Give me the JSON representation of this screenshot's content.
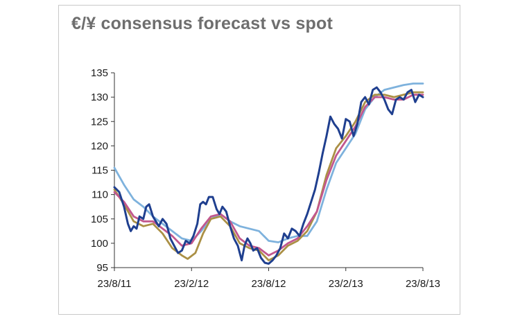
{
  "chart_data": {
    "type": "line",
    "title": "€/¥ consensus forecast vs spot",
    "xlabel": "",
    "ylabel": "",
    "ylim": [
      95,
      135
    ],
    "yticks": [
      95,
      100,
      105,
      110,
      115,
      120,
      125,
      130,
      135
    ],
    "xlim": [
      "2011-08-23",
      "2013-08-23"
    ],
    "xticks": [
      "23/8/11",
      "23/2/12",
      "23/8/12",
      "23/2/13",
      "23/8/13"
    ],
    "grid": false,
    "legend": "none",
    "series": [
      {
        "color": "#1f3f8f",
        "points": [
          [
            0,
            111.5
          ],
          [
            0.25,
            110.5
          ],
          [
            0.5,
            107.5
          ],
          [
            0.7,
            104
          ],
          [
            0.85,
            102.5
          ],
          [
            1,
            103.5
          ],
          [
            1.15,
            103
          ],
          [
            1.3,
            105.5
          ],
          [
            1.5,
            105
          ],
          [
            1.65,
            107.5
          ],
          [
            1.8,
            108
          ],
          [
            2,
            105.5
          ],
          [
            2.15,
            104.5
          ],
          [
            2.3,
            103.5
          ],
          [
            2.5,
            105
          ],
          [
            2.7,
            104
          ],
          [
            2.9,
            101
          ],
          [
            3.1,
            99.5
          ],
          [
            3.3,
            98
          ],
          [
            3.5,
            98.5
          ],
          [
            3.7,
            100.5
          ],
          [
            3.9,
            100
          ],
          [
            4.1,
            101.5
          ],
          [
            4.3,
            104
          ],
          [
            4.45,
            108
          ],
          [
            4.6,
            108.5
          ],
          [
            4.75,
            108
          ],
          [
            4.9,
            109.5
          ],
          [
            5.1,
            109.5
          ],
          [
            5.3,
            107
          ],
          [
            5.45,
            106
          ],
          [
            5.6,
            107.5
          ],
          [
            5.8,
            106.5
          ],
          [
            6,
            103.5
          ],
          [
            6.2,
            101
          ],
          [
            6.4,
            99.5
          ],
          [
            6.6,
            96.5
          ],
          [
            6.75,
            99.5
          ],
          [
            6.9,
            101
          ],
          [
            7.05,
            100
          ],
          [
            7.2,
            98.5
          ],
          [
            7.4,
            99
          ],
          [
            7.6,
            97
          ],
          [
            7.8,
            96
          ],
          [
            8,
            95.8
          ],
          [
            8.2,
            96.5
          ],
          [
            8.4,
            97.5
          ],
          [
            8.6,
            99
          ],
          [
            8.8,
            102
          ],
          [
            9,
            101
          ],
          [
            9.2,
            103
          ],
          [
            9.4,
            102.5
          ],
          [
            9.6,
            101.5
          ],
          [
            9.8,
            104
          ],
          [
            10,
            106
          ],
          [
            10.2,
            108.5
          ],
          [
            10.4,
            111
          ],
          [
            10.6,
            114.5
          ],
          [
            10.8,
            118.5
          ],
          [
            11,
            122
          ],
          [
            11.2,
            126
          ],
          [
            11.4,
            124.5
          ],
          [
            11.6,
            123.5
          ],
          [
            11.8,
            121.5
          ],
          [
            12,
            125.5
          ],
          [
            12.2,
            125
          ],
          [
            12.4,
            122
          ],
          [
            12.6,
            124.5
          ],
          [
            12.8,
            129
          ],
          [
            13,
            130
          ],
          [
            13.2,
            128.5
          ],
          [
            13.4,
            131.5
          ],
          [
            13.6,
            132
          ],
          [
            13.8,
            131
          ],
          [
            14,
            129.5
          ],
          [
            14.2,
            127.5
          ],
          [
            14.4,
            126.5
          ],
          [
            14.6,
            129.5
          ],
          [
            14.8,
            130
          ],
          [
            15,
            129.5
          ],
          [
            15.2,
            131
          ],
          [
            15.4,
            131.5
          ],
          [
            15.6,
            129
          ],
          [
            15.8,
            130.5
          ],
          [
            16,
            130
          ]
        ]
      },
      {
        "color": "#c2578e",
        "points": [
          [
            0,
            110.5
          ],
          [
            0.5,
            108.5
          ],
          [
            1,
            105.5
          ],
          [
            1.5,
            104.5
          ],
          [
            2,
            104.5
          ],
          [
            2.5,
            103
          ],
          [
            3,
            101.5
          ],
          [
            3.5,
            99.5
          ],
          [
            4,
            100
          ],
          [
            4.5,
            103
          ],
          [
            5,
            105.5
          ],
          [
            5.5,
            106
          ],
          [
            6,
            104.5
          ],
          [
            6.5,
            101
          ],
          [
            7,
            99.5
          ],
          [
            7.5,
            99
          ],
          [
            8,
            97.5
          ],
          [
            8.5,
            98.5
          ],
          [
            9,
            100
          ],
          [
            9.5,
            101
          ],
          [
            10,
            103.5
          ],
          [
            10.5,
            106.5
          ],
          [
            11,
            113
          ],
          [
            11.5,
            118
          ],
          [
            12,
            121
          ],
          [
            12.5,
            124
          ],
          [
            13,
            128
          ],
          [
            13.5,
            130
          ],
          [
            14,
            130
          ],
          [
            14.5,
            129.5
          ],
          [
            15,
            129.5
          ],
          [
            15.5,
            130.5
          ],
          [
            16,
            130.5
          ]
        ]
      },
      {
        "color": "#ab9045",
        "points": [
          [
            0,
            111
          ],
          [
            0.5,
            108
          ],
          [
            1,
            104.5
          ],
          [
            1.5,
            103.5
          ],
          [
            2,
            104
          ],
          [
            2.5,
            102
          ],
          [
            3,
            99
          ],
          [
            3.5,
            97.5
          ],
          [
            3.8,
            96.8
          ],
          [
            4.2,
            98
          ],
          [
            4.6,
            102
          ],
          [
            5,
            105
          ],
          [
            5.5,
            105.5
          ],
          [
            6,
            103.5
          ],
          [
            6.5,
            100
          ],
          [
            7,
            99
          ],
          [
            7.5,
            98.5
          ],
          [
            8,
            96.5
          ],
          [
            8.5,
            97.5
          ],
          [
            9,
            99.5
          ],
          [
            9.5,
            100.5
          ],
          [
            10,
            102.5
          ],
          [
            10.5,
            106.5
          ],
          [
            11,
            114
          ],
          [
            11.5,
            119.5
          ],
          [
            12,
            122
          ],
          [
            12.5,
            125
          ],
          [
            13,
            129
          ],
          [
            13.5,
            130.5
          ],
          [
            14,
            130.5
          ],
          [
            14.5,
            130
          ],
          [
            15,
            130.5
          ],
          [
            15.5,
            131
          ],
          [
            16,
            131
          ]
        ]
      },
      {
        "color": "#7eb2dd",
        "points": [
          [
            0,
            115.5
          ],
          [
            0.5,
            112
          ],
          [
            1,
            109
          ],
          [
            1.5,
            107.5
          ],
          [
            2,
            105.5
          ],
          [
            2.5,
            104
          ],
          [
            3,
            102.5
          ],
          [
            3.5,
            101
          ],
          [
            4,
            100.5
          ],
          [
            4.5,
            102.5
          ],
          [
            5,
            105
          ],
          [
            5.5,
            106
          ],
          [
            6,
            104.5
          ],
          [
            6.5,
            103.5
          ],
          [
            7,
            103
          ],
          [
            7.5,
            102.5
          ],
          [
            8,
            100.5
          ],
          [
            8.5,
            100.2
          ],
          [
            9,
            101
          ],
          [
            9.5,
            101.5
          ],
          [
            10,
            101.5
          ],
          [
            10.5,
            104.5
          ],
          [
            11,
            111
          ],
          [
            11.5,
            116.5
          ],
          [
            12,
            119.5
          ],
          [
            12.5,
            122.5
          ],
          [
            13,
            127.5
          ],
          [
            13.5,
            130
          ],
          [
            14,
            131.5
          ],
          [
            14.5,
            132
          ],
          [
            15,
            132.5
          ],
          [
            15.5,
            132.8
          ],
          [
            16,
            132.8
          ]
        ]
      }
    ]
  }
}
